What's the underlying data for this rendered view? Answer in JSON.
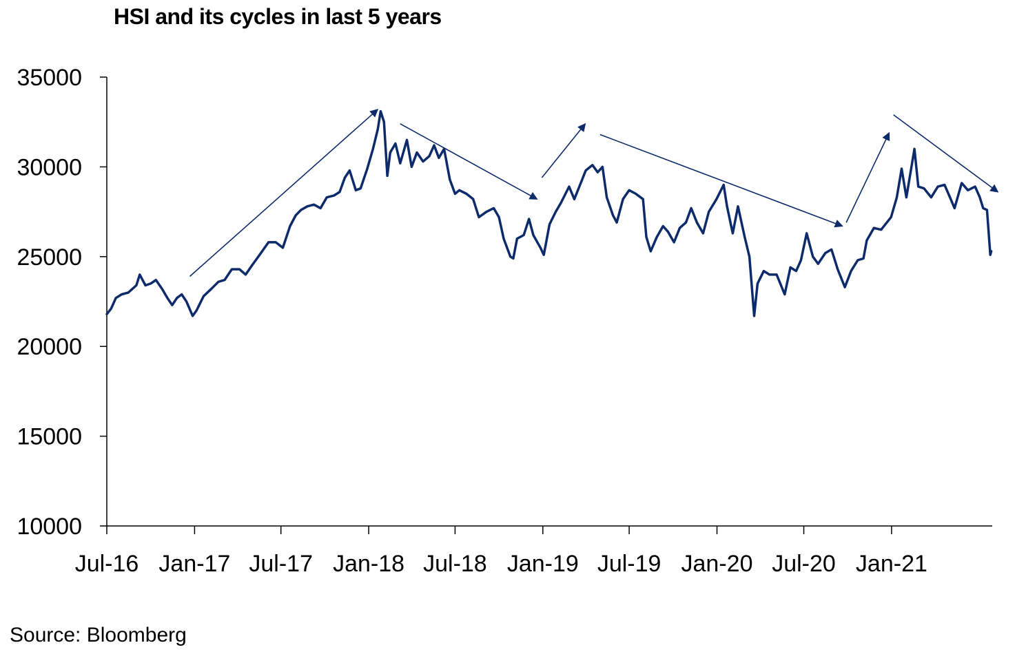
{
  "chart_data": {
    "type": "line",
    "title": "HSI and its cycles in last 5 years",
    "source": "Source: Bloomberg",
    "colors": {
      "line": "#0d2a6b",
      "axis": "#000000",
      "arrow": "#0d2a6b"
    },
    "grid": false,
    "legend": "none",
    "xlabel": "",
    "ylabel": "",
    "ylim": [
      10000,
      35000
    ],
    "yticks": [
      {
        "value": 35000,
        "label": "35000"
      },
      {
        "value": 30000,
        "label": "30000"
      },
      {
        "value": 25000,
        "label": "25000"
      },
      {
        "value": 20000,
        "label": "20000"
      },
      {
        "value": 15000,
        "label": "15000"
      },
      {
        "value": 10000,
        "label": "10000"
      }
    ],
    "xlim": [
      "2016-07-01",
      "2021-07-31"
    ],
    "xticks": [
      {
        "date": "2016-07-01",
        "label": "Jul-16"
      },
      {
        "date": "2017-01-01",
        "label": "Jan-17"
      },
      {
        "date": "2017-07-01",
        "label": "Jul-17"
      },
      {
        "date": "2018-01-01",
        "label": "Jan-18"
      },
      {
        "date": "2018-07-01",
        "label": "Jul-18"
      },
      {
        "date": "2019-01-01",
        "label": "Jan-19"
      },
      {
        "date": "2019-07-01",
        "label": "Jul-19"
      },
      {
        "date": "2020-01-01",
        "label": "Jan-20"
      },
      {
        "date": "2020-07-01",
        "label": "Jul-20"
      },
      {
        "date": "2021-01-01",
        "label": "Jan-21"
      }
    ],
    "series": [
      {
        "points": [
          [
            "2016-07-01",
            21800
          ],
          [
            "2016-07-10",
            22100
          ],
          [
            "2016-07-20",
            22700
          ],
          [
            "2016-08-01",
            22900
          ],
          [
            "2016-08-15",
            23000
          ],
          [
            "2016-09-01",
            23400
          ],
          [
            "2016-09-08",
            24000
          ],
          [
            "2016-09-20",
            23400
          ],
          [
            "2016-10-01",
            23500
          ],
          [
            "2016-10-12",
            23700
          ],
          [
            "2016-10-25",
            23200
          ],
          [
            "2016-11-05",
            22700
          ],
          [
            "2016-11-15",
            22300
          ],
          [
            "2016-11-25",
            22700
          ],
          [
            "2016-12-05",
            22900
          ],
          [
            "2016-12-15",
            22500
          ],
          [
            "2016-12-28",
            21700
          ],
          [
            "2017-01-05",
            22000
          ],
          [
            "2017-01-20",
            22800
          ],
          [
            "2017-02-05",
            23200
          ],
          [
            "2017-02-20",
            23600
          ],
          [
            "2017-03-05",
            23700
          ],
          [
            "2017-03-20",
            24300
          ],
          [
            "2017-04-05",
            24300
          ],
          [
            "2017-04-18",
            24000
          ],
          [
            "2017-05-01",
            24500
          ],
          [
            "2017-05-20",
            25200
          ],
          [
            "2017-06-05",
            25800
          ],
          [
            "2017-06-20",
            25800
          ],
          [
            "2017-07-05",
            25500
          ],
          [
            "2017-07-20",
            26700
          ],
          [
            "2017-08-01",
            27300
          ],
          [
            "2017-08-12",
            27600
          ],
          [
            "2017-08-25",
            27800
          ],
          [
            "2017-09-08",
            27900
          ],
          [
            "2017-09-22",
            27700
          ],
          [
            "2017-10-05",
            28300
          ],
          [
            "2017-10-20",
            28400
          ],
          [
            "2017-11-01",
            28600
          ],
          [
            "2017-11-12",
            29400
          ],
          [
            "2017-11-22",
            29800
          ],
          [
            "2017-12-05",
            28700
          ],
          [
            "2017-12-15",
            28800
          ],
          [
            "2017-12-29",
            29900
          ],
          [
            "2018-01-10",
            31000
          ],
          [
            "2018-01-20",
            32100
          ],
          [
            "2018-01-26",
            33100
          ],
          [
            "2018-02-02",
            32500
          ],
          [
            "2018-02-09",
            29500
          ],
          [
            "2018-02-15",
            30800
          ],
          [
            "2018-02-26",
            31300
          ],
          [
            "2018-03-08",
            30200
          ],
          [
            "2018-03-22",
            31500
          ],
          [
            "2018-04-01",
            30000
          ],
          [
            "2018-04-12",
            30800
          ],
          [
            "2018-04-25",
            30300
          ],
          [
            "2018-05-08",
            30600
          ],
          [
            "2018-05-18",
            31200
          ],
          [
            "2018-05-28",
            30500
          ],
          [
            "2018-06-08",
            31000
          ],
          [
            "2018-06-20",
            29300
          ],
          [
            "2018-07-01",
            28500
          ],
          [
            "2018-07-10",
            28700
          ],
          [
            "2018-07-25",
            28500
          ],
          [
            "2018-08-08",
            28200
          ],
          [
            "2018-08-20",
            27200
          ],
          [
            "2018-09-05",
            27500
          ],
          [
            "2018-09-20",
            27700
          ],
          [
            "2018-10-01",
            27200
          ],
          [
            "2018-10-11",
            26000
          ],
          [
            "2018-10-25",
            25000
          ],
          [
            "2018-10-31",
            24900
          ],
          [
            "2018-11-08",
            26000
          ],
          [
            "2018-11-22",
            26200
          ],
          [
            "2018-12-03",
            27100
          ],
          [
            "2018-12-12",
            26200
          ],
          [
            "2018-12-27",
            25500
          ],
          [
            "2019-01-03",
            25100
          ],
          [
            "2019-01-15",
            26800
          ],
          [
            "2019-01-28",
            27500
          ],
          [
            "2019-02-08",
            28000
          ],
          [
            "2019-02-25",
            28900
          ],
          [
            "2019-03-08",
            28200
          ],
          [
            "2019-03-20",
            29000
          ],
          [
            "2019-04-01",
            29800
          ],
          [
            "2019-04-15",
            30100
          ],
          [
            "2019-04-26",
            29700
          ],
          [
            "2019-05-06",
            30000
          ],
          [
            "2019-05-15",
            28300
          ],
          [
            "2019-05-28",
            27300
          ],
          [
            "2019-06-05",
            26900
          ],
          [
            "2019-06-18",
            28200
          ],
          [
            "2019-07-01",
            28700
          ],
          [
            "2019-07-15",
            28500
          ],
          [
            "2019-07-30",
            28200
          ],
          [
            "2019-08-06",
            26100
          ],
          [
            "2019-08-15",
            25300
          ],
          [
            "2019-08-28",
            26100
          ],
          [
            "2019-09-10",
            26700
          ],
          [
            "2019-09-20",
            26400
          ],
          [
            "2019-10-03",
            25800
          ],
          [
            "2019-10-15",
            26600
          ],
          [
            "2019-10-28",
            26900
          ],
          [
            "2019-11-08",
            27700
          ],
          [
            "2019-11-20",
            26900
          ],
          [
            "2019-12-03",
            26300
          ],
          [
            "2019-12-15",
            27500
          ],
          [
            "2019-12-31",
            28200
          ],
          [
            "2020-01-15",
            29000
          ],
          [
            "2020-01-22",
            27800
          ],
          [
            "2020-02-03",
            26300
          ],
          [
            "2020-02-14",
            27800
          ],
          [
            "2020-02-28",
            26100
          ],
          [
            "2020-03-09",
            25000
          ],
          [
            "2020-03-19",
            21700
          ],
          [
            "2020-03-26",
            23500
          ],
          [
            "2020-04-08",
            24200
          ],
          [
            "2020-04-20",
            24000
          ],
          [
            "2020-05-05",
            24000
          ],
          [
            "2020-05-22",
            22900
          ],
          [
            "2020-06-03",
            24400
          ],
          [
            "2020-06-15",
            24200
          ],
          [
            "2020-06-25",
            24800
          ],
          [
            "2020-07-07",
            26300
          ],
          [
            "2020-07-20",
            25000
          ],
          [
            "2020-07-31",
            24600
          ],
          [
            "2020-08-15",
            25200
          ],
          [
            "2020-08-28",
            25400
          ],
          [
            "2020-09-10",
            24300
          ],
          [
            "2020-09-25",
            23300
          ],
          [
            "2020-10-08",
            24200
          ],
          [
            "2020-10-22",
            24800
          ],
          [
            "2020-11-03",
            24900
          ],
          [
            "2020-11-10",
            25900
          ],
          [
            "2020-11-25",
            26600
          ],
          [
            "2020-12-10",
            26500
          ],
          [
            "2020-12-31",
            27200
          ],
          [
            "2021-01-12",
            28300
          ],
          [
            "2021-01-22",
            29900
          ],
          [
            "2021-02-01",
            28300
          ],
          [
            "2021-02-18",
            31000
          ],
          [
            "2021-02-26",
            28900
          ],
          [
            "2021-03-10",
            28800
          ],
          [
            "2021-03-25",
            28300
          ],
          [
            "2021-04-08",
            28900
          ],
          [
            "2021-04-22",
            29000
          ],
          [
            "2021-05-05",
            28200
          ],
          [
            "2021-05-13",
            27700
          ],
          [
            "2021-05-28",
            29100
          ],
          [
            "2021-06-10",
            28700
          ],
          [
            "2021-06-25",
            28900
          ],
          [
            "2021-07-05",
            28300
          ],
          [
            "2021-07-12",
            27700
          ],
          [
            "2021-07-20",
            27600
          ],
          [
            "2021-07-27",
            25100
          ],
          [
            "2021-07-29",
            25300
          ]
        ]
      }
    ],
    "annotations": [
      {
        "kind": "arrow",
        "from": [
          "2016-12-22",
          23900
        ],
        "to": [
          "2018-01-20",
          33200
        ]
      },
      {
        "kind": "arrow",
        "from": [
          "2018-03-08",
          32400
        ],
        "to": [
          "2018-12-20",
          28200
        ]
      },
      {
        "kind": "arrow",
        "from": [
          "2018-12-30",
          29400
        ],
        "to": [
          "2019-03-31",
          32400
        ]
      },
      {
        "kind": "arrow",
        "from": [
          "2019-05-01",
          31800
        ],
        "to": [
          "2020-09-20",
          26700
        ]
      },
      {
        "kind": "arrow",
        "from": [
          "2020-09-28",
          26900
        ],
        "to": [
          "2020-12-27",
          31900
        ]
      },
      {
        "kind": "arrow",
        "from": [
          "2021-01-05",
          32900
        ],
        "to": [
          "2021-08-12",
          28600
        ]
      }
    ]
  }
}
